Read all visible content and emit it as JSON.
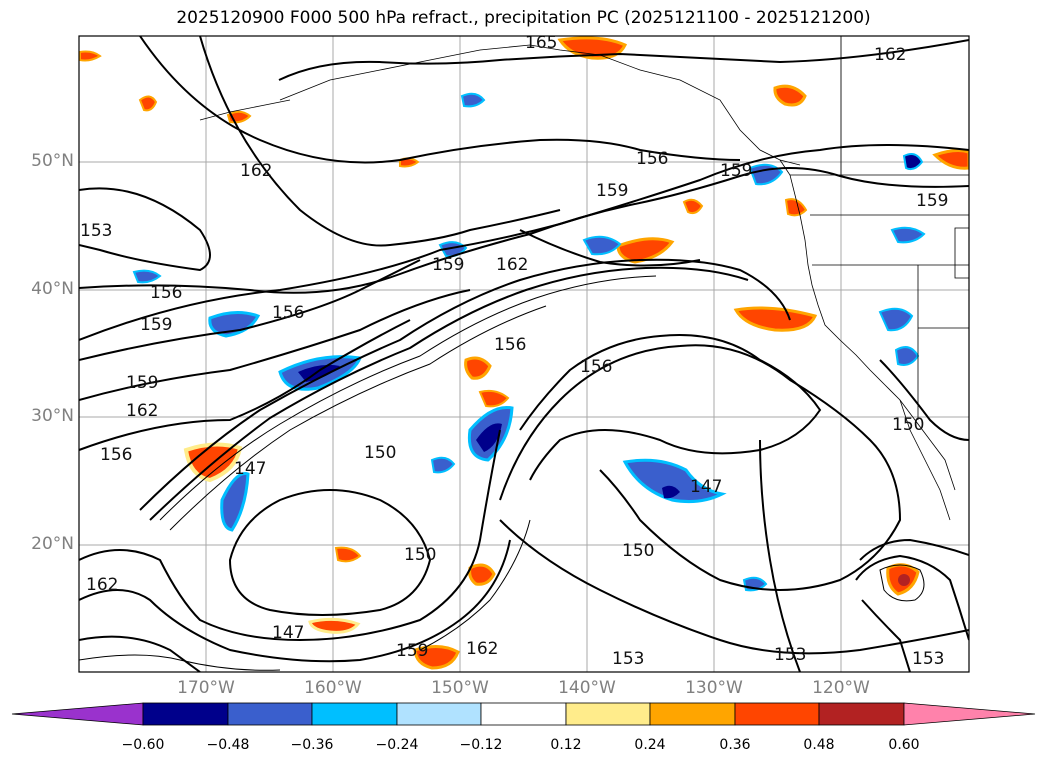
{
  "title": "2025120900 F000 500 hPa refract., precipitation PC (2025121100 - 2025121200)",
  "map": {
    "lat_ticks": [
      "50°N",
      "40°N",
      "30°N",
      "20°N"
    ],
    "lon_ticks": [
      "170°W",
      "160°W",
      "150°W",
      "140°W",
      "130°W",
      "120°W"
    ],
    "contour_labels": [
      "165",
      "162",
      "162",
      "153",
      "156",
      "159",
      "159",
      "162",
      "156",
      "156",
      "159",
      "156",
      "159",
      "162",
      "159",
      "150",
      "147",
      "150",
      "147",
      "150",
      "147",
      "159",
      "162",
      "153",
      "153",
      "153",
      "150",
      "159",
      "162",
      "156",
      "156"
    ]
  },
  "colorbar": {
    "tick_labels": [
      "−0.60",
      "−0.48",
      "−0.36",
      "−0.24",
      "−0.12",
      "0.12",
      "0.24",
      "0.36",
      "0.48",
      "0.60"
    ],
    "colors": [
      "#9a32cd",
      "#00008b",
      "#3a5fcd",
      "#00bfff",
      "#b0e2ff",
      "#ffffff",
      "#ffec8b",
      "#ffa500",
      "#ff4500",
      "#b22222",
      "#ff82ab"
    ]
  }
}
